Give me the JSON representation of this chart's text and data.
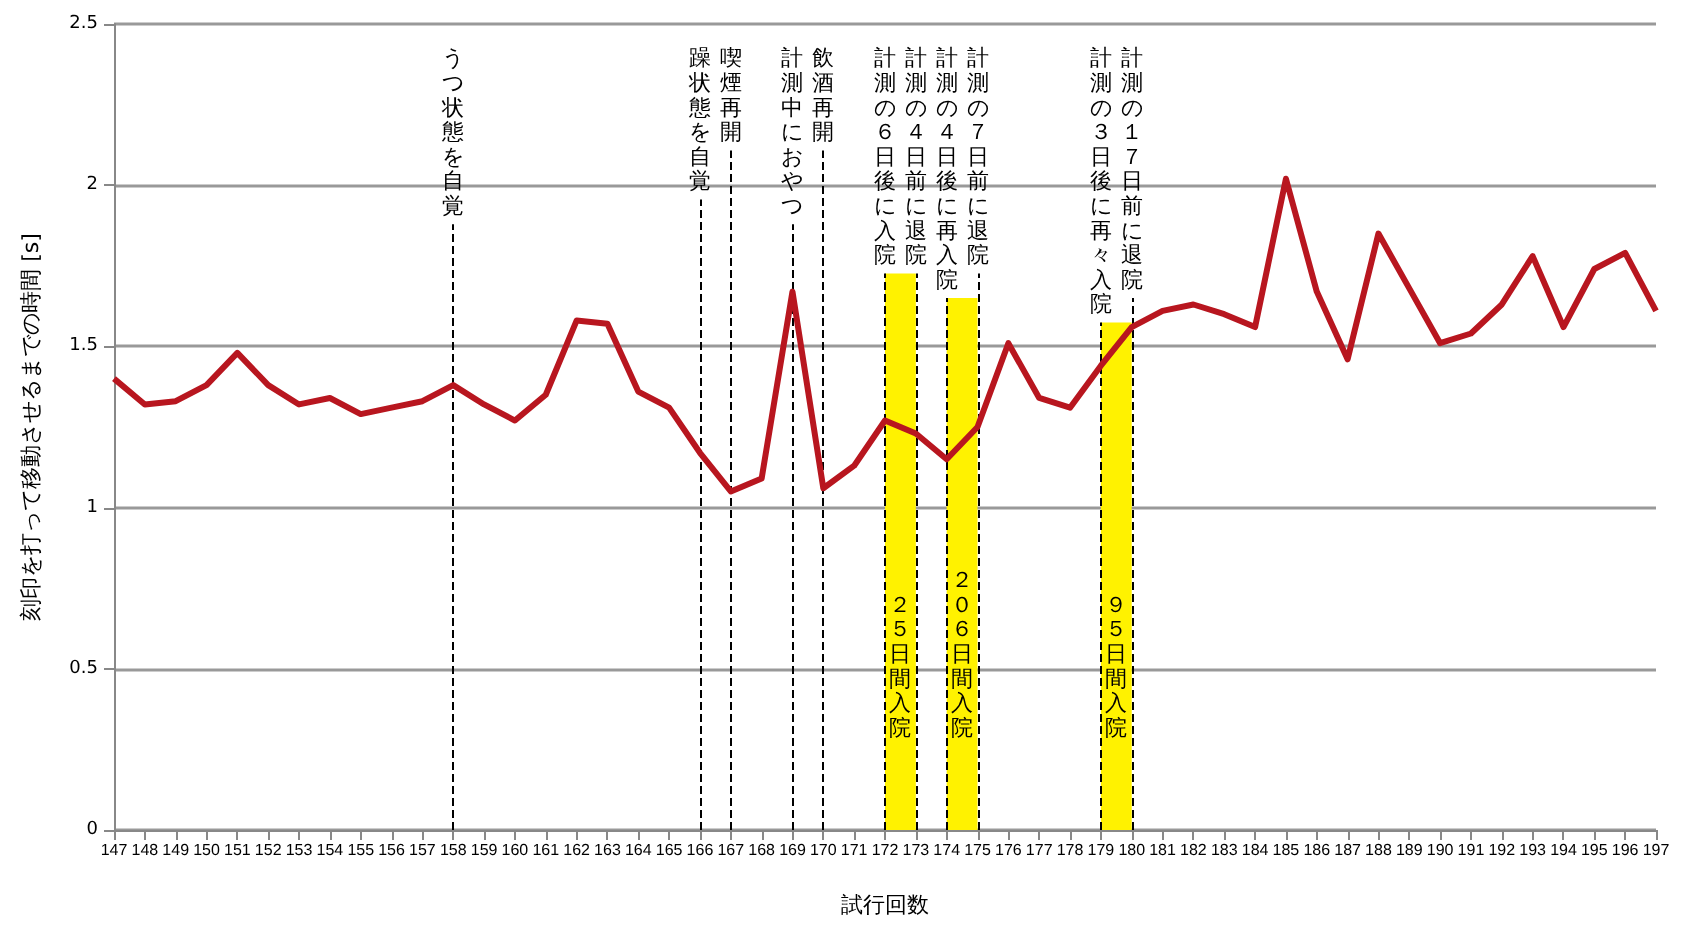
{
  "chart_data": {
    "type": "line",
    "xlabel": "試行回数",
    "ylabel": "刻印を打って移動させるまでの時間 [s]",
    "x": [
      147,
      148,
      149,
      150,
      151,
      152,
      153,
      154,
      155,
      156,
      157,
      158,
      159,
      160,
      161,
      162,
      163,
      164,
      165,
      166,
      167,
      168,
      169,
      170,
      171,
      172,
      173,
      174,
      175,
      176,
      177,
      178,
      179,
      180,
      181,
      182,
      183,
      184,
      185,
      186,
      187,
      188,
      189,
      190,
      191,
      192,
      193,
      194,
      195,
      196,
      197
    ],
    "series": [
      {
        "color": "#b8161f",
        "values": [
          1.4,
          1.32,
          1.33,
          1.38,
          1.48,
          1.38,
          1.32,
          1.34,
          1.29,
          1.31,
          1.33,
          1.38,
          1.32,
          1.27,
          1.35,
          1.58,
          1.57,
          1.36,
          1.31,
          1.17,
          1.05,
          1.09,
          1.67,
          1.06,
          1.13,
          1.27,
          1.23,
          1.15,
          1.25,
          1.51,
          1.34,
          1.31,
          1.44,
          1.56,
          1.61,
          1.63,
          1.6,
          1.56,
          2.02,
          1.67,
          1.46,
          1.85,
          1.68,
          1.51,
          1.54,
          1.63,
          1.78,
          1.56,
          1.74,
          1.79,
          1.61
        ]
      }
    ],
    "xlim": [
      147,
      197
    ],
    "xticks": [
      147,
      148,
      149,
      150,
      151,
      152,
      153,
      154,
      155,
      156,
      157,
      158,
      159,
      160,
      161,
      162,
      163,
      164,
      165,
      166,
      167,
      168,
      169,
      170,
      171,
      172,
      173,
      174,
      175,
      176,
      177,
      178,
      179,
      180,
      181,
      182,
      183,
      184,
      185,
      186,
      187,
      188,
      189,
      190,
      191,
      192,
      193,
      194,
      195,
      196,
      197
    ],
    "ylim": [
      0,
      2.5
    ],
    "yticks": [
      0,
      0.5,
      1,
      1.5,
      2,
      2.5
    ],
    "grid": "y",
    "marker": "none",
    "line_style": "solid",
    "ref_lines": [
      {
        "axis": "x",
        "value": 158,
        "label": "うつ状態を自覚",
        "line_style": "dashed"
      },
      {
        "axis": "x",
        "value": 166,
        "label": "躁状態を自覚",
        "line_style": "dashed"
      },
      {
        "axis": "x",
        "value": 167,
        "label": "喫煙再開",
        "line_style": "dashed"
      },
      {
        "axis": "x",
        "value": 169,
        "label": "計測中におやつ",
        "line_style": "dashed"
      },
      {
        "axis": "x",
        "value": 170,
        "label": "飲酒再開",
        "line_style": "dashed"
      },
      {
        "axis": "x",
        "value": 172,
        "label": "計測の６日後に入院",
        "line_style": "dashed"
      },
      {
        "axis": "x",
        "value": 173,
        "label": "計測の４日前に退院",
        "line_style": "dashed"
      },
      {
        "axis": "x",
        "value": 174,
        "label": "計測の４日後に再入院",
        "line_style": "dashed"
      },
      {
        "axis": "x",
        "value": 175,
        "label": "計測の７日前に退院",
        "line_style": "dashed"
      },
      {
        "axis": "x",
        "value": 179,
        "label": "計測の３日後に再々入院",
        "line_style": "dashed"
      },
      {
        "axis": "x",
        "value": 180,
        "label": "計測の１７日前に退院",
        "line_style": "dashed"
      }
    ],
    "bands": [
      {
        "axis": "x",
        "from": 172,
        "to": 173,
        "label": "２５日間入院",
        "color": "#fff200"
      },
      {
        "axis": "x",
        "from": 174,
        "to": 175,
        "label": "２０６日間入院",
        "color": "#fff200"
      },
      {
        "axis": "x",
        "from": 179,
        "to": 180,
        "label": "９５日間入院",
        "color": "#fff200"
      }
    ]
  }
}
